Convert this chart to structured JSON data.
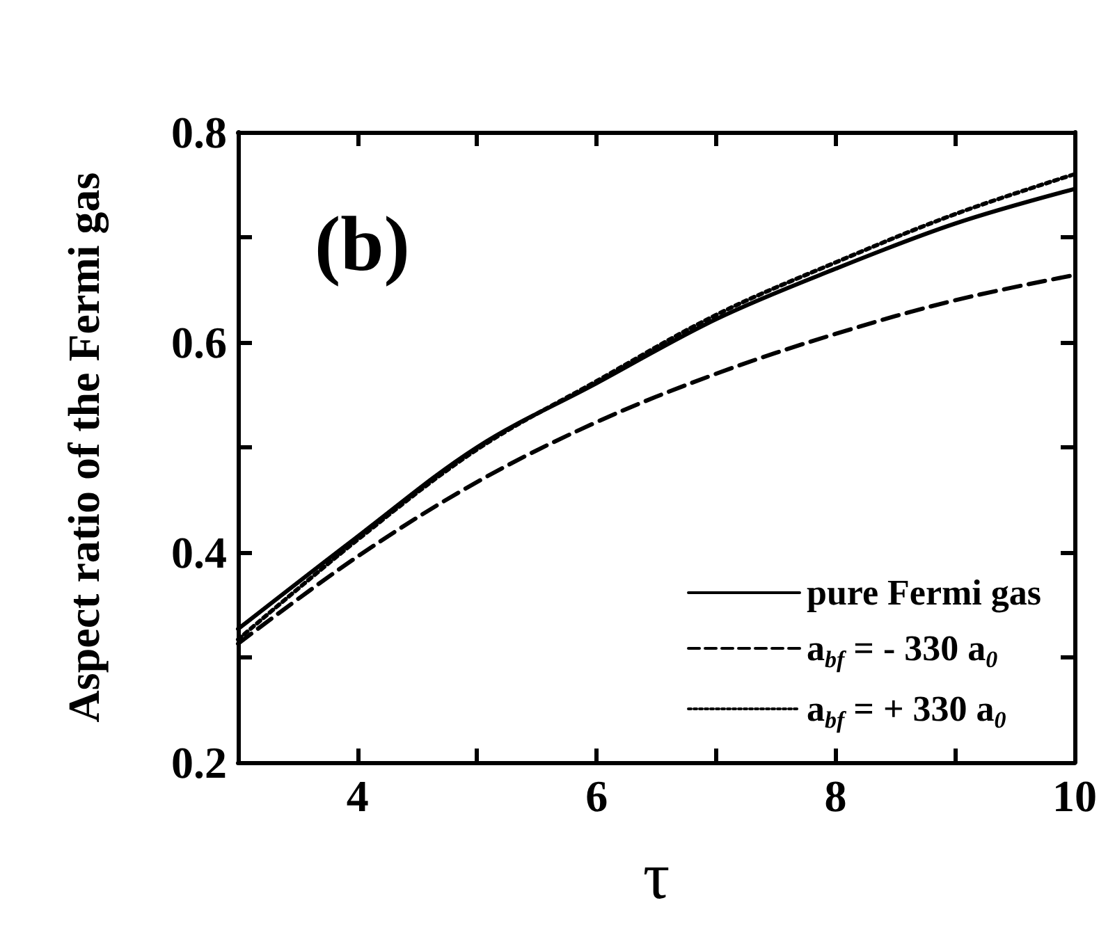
{
  "chart_data": {
    "type": "line",
    "xlabel": "τ",
    "ylabel": "Aspect ratio of the Fermi gas",
    "annotations": [
      "(b)"
    ],
    "x": [
      3,
      4,
      5,
      6,
      7,
      8,
      9,
      10
    ],
    "xlim": [
      3,
      10
    ],
    "xticks": [
      {
        "value": 3,
        "label": null
      },
      4,
      {
        "value": 5,
        "label": null
      },
      6,
      {
        "value": 7,
        "label": null
      },
      8,
      {
        "value": 9,
        "label": null
      },
      10
    ],
    "ylim": [
      0.2,
      0.8
    ],
    "yticks": [
      0.2,
      {
        "value": 0.3,
        "label": null
      },
      0.4,
      {
        "value": 0.5,
        "label": null
      },
      0.6,
      {
        "value": 0.7,
        "label": null
      },
      0.8
    ],
    "grid": false,
    "legend": "bottom right",
    "marker": "none",
    "series": [
      {
        "name": "pure Fermi gas",
        "color": "#000000",
        "line_style": "solid",
        "values": [
          0.327,
          0.415,
          0.5,
          0.561,
          0.622,
          0.67,
          0.713,
          0.746
        ]
      },
      {
        "name": "a$_{bf}$ = - 330 a$_{0}$",
        "color": "#000000",
        "line_style": "dashed",
        "values": [
          0.313,
          0.396,
          0.467,
          0.524,
          0.57,
          0.608,
          0.64,
          0.664
        ]
      },
      {
        "name": "a$_{bf}$ = + 330 a$_{0}$",
        "color": "#000000",
        "line_style": "dotted",
        "values": [
          0.317,
          0.412,
          0.498,
          0.563,
          0.626,
          0.676,
          0.722,
          0.76
        ]
      }
    ]
  }
}
